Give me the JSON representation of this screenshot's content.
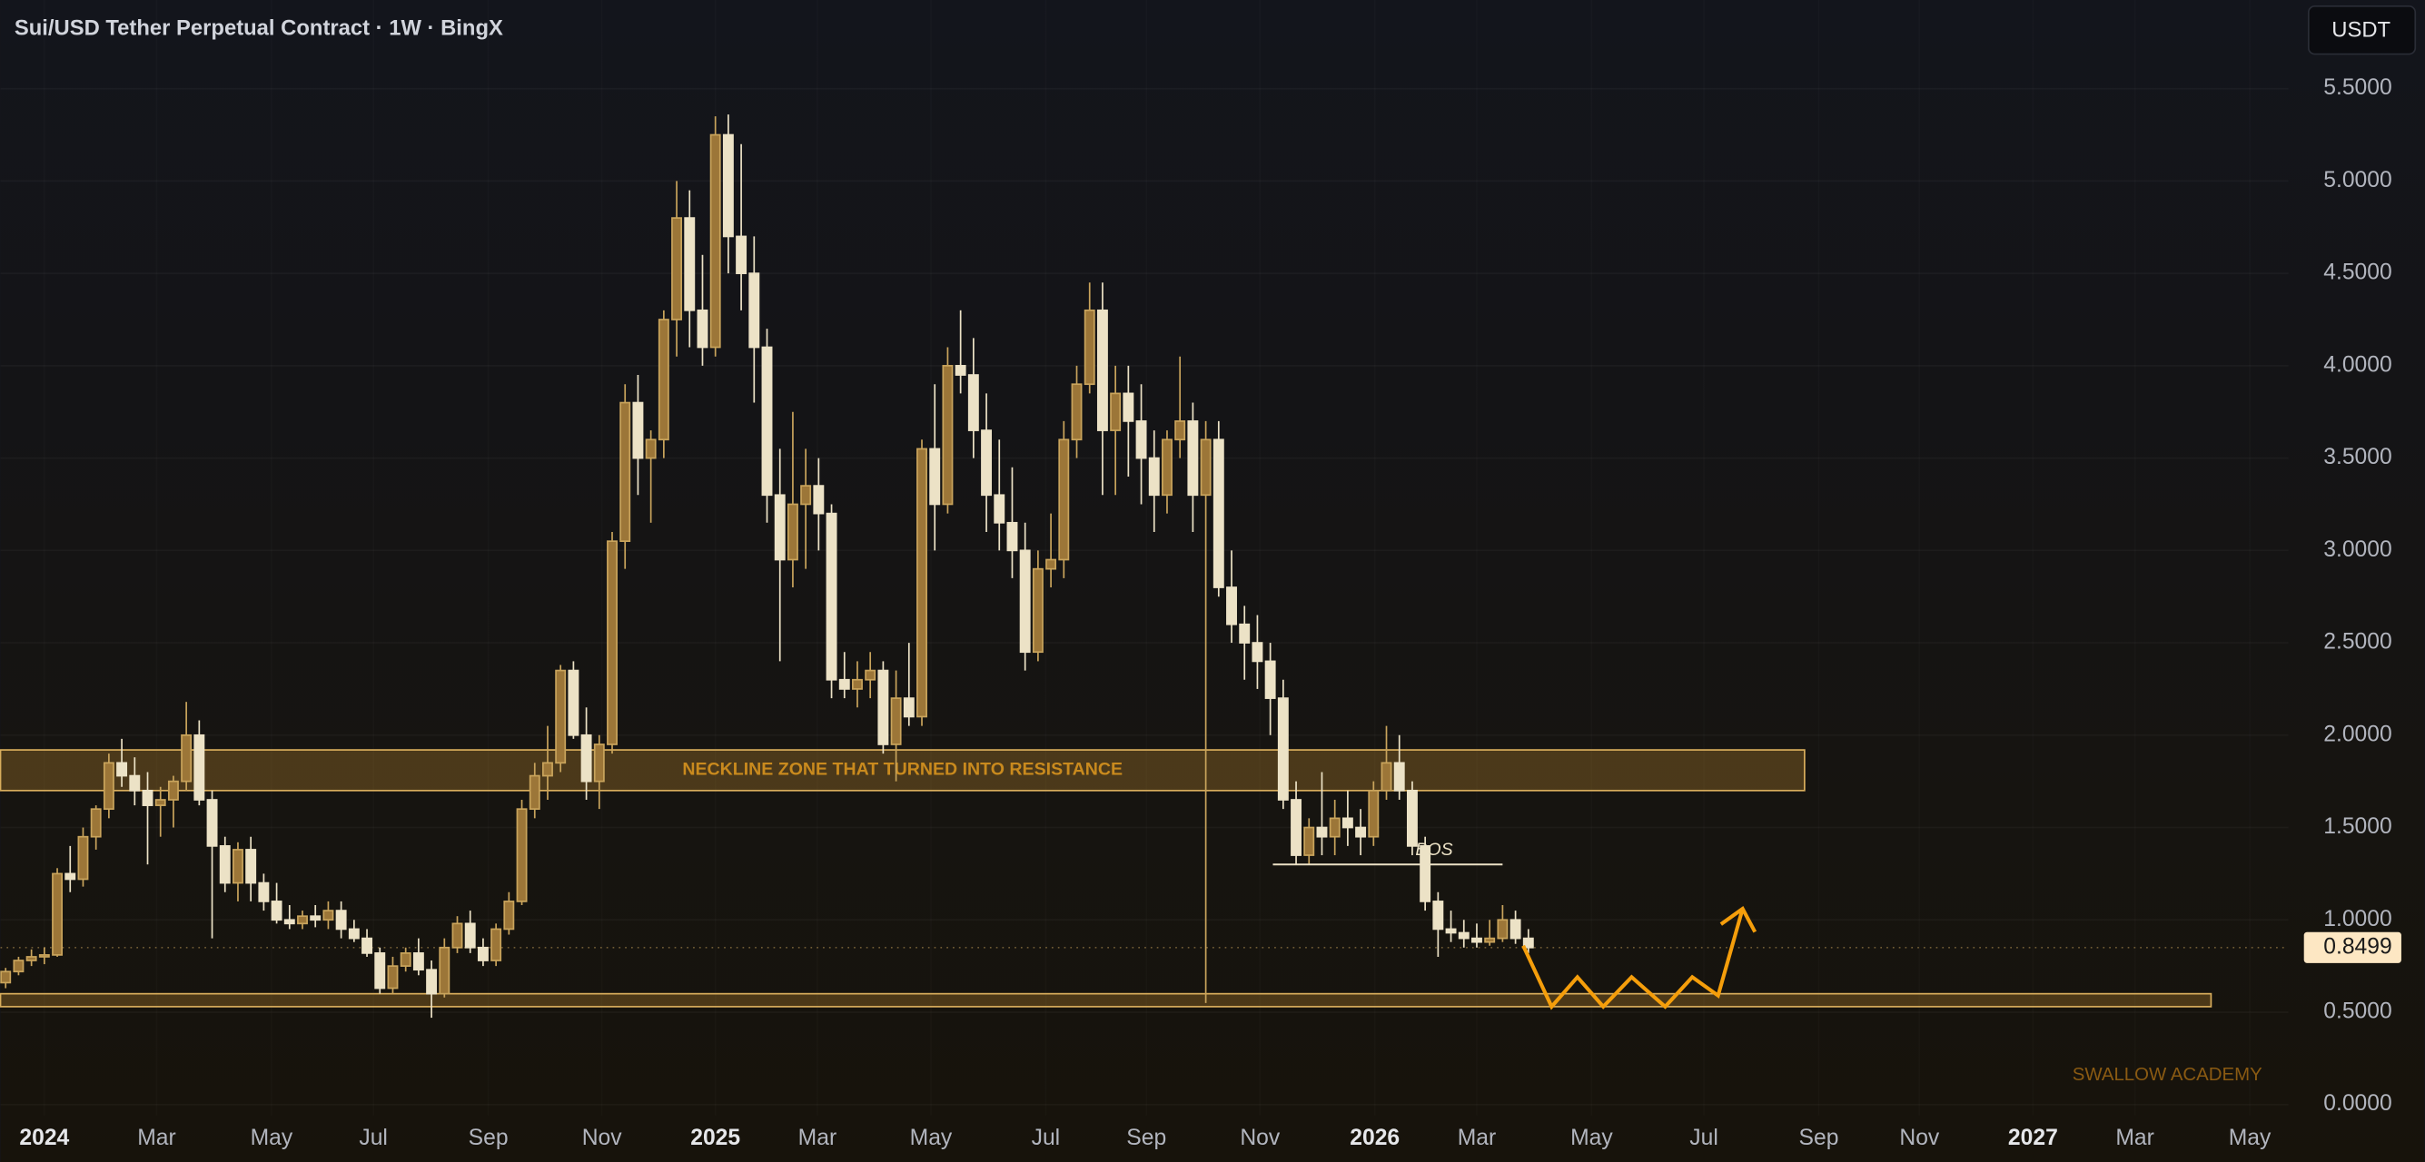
{
  "chart_data": {
    "type": "candlestick",
    "title": "Sui/USD Tether Perpetual Contract · 1W · BingX",
    "currency_button": "USDT",
    "watermark": "SWALLOW ACADEMY",
    "up_color": "#c9a45c",
    "down_color": "#ece2c6",
    "open": [
      0.66,
      0.72,
      0.78,
      0.8,
      0.81,
      1.25,
      1.22,
      1.45,
      1.6,
      1.85,
      1.78,
      1.7,
      1.62,
      1.65,
      1.75,
      2.0,
      1.65,
      1.4,
      1.2,
      1.38,
      1.2,
      1.1,
      1.0,
      0.98,
      1.02,
      1.0,
      1.05,
      0.95,
      0.9,
      0.82,
      0.63,
      0.75,
      0.82,
      0.73,
      0.6,
      0.85,
      0.98,
      0.85,
      0.78,
      0.95,
      1.1,
      1.6,
      1.78,
      1.85,
      2.35,
      2.0,
      1.75,
      1.95,
      3.05,
      3.8,
      3.5,
      3.6,
      4.25,
      4.8,
      4.3,
      4.1,
      5.25,
      4.7,
      4.5,
      4.1,
      3.3,
      2.95,
      3.25,
      3.35,
      3.2,
      2.3,
      2.25,
      2.3,
      2.35,
      1.95,
      2.2,
      2.1,
      3.55,
      3.25,
      4.0,
      3.95,
      3.65,
      3.3,
      3.15,
      3.0,
      2.45,
      2.9,
      2.95,
      3.6,
      3.9,
      4.3,
      3.65,
      3.85,
      3.7,
      3.5,
      3.3,
      3.6,
      3.7,
      3.3,
      3.6,
      2.8,
      2.6,
      2.5,
      2.4,
      2.2,
      1.65,
      1.35,
      1.5,
      1.45,
      1.55,
      1.5,
      1.45,
      1.7,
      1.85,
      1.7,
      1.4,
      1.1,
      0.95,
      0.93,
      0.9,
      0.88,
      0.9,
      1.0,
      0.9
    ],
    "high": [
      0.74,
      0.8,
      0.84,
      0.85,
      1.28,
      1.4,
      1.5,
      1.62,
      1.9,
      1.98,
      1.88,
      1.8,
      1.72,
      1.78,
      2.18,
      2.08,
      1.7,
      1.45,
      1.42,
      1.45,
      1.25,
      1.2,
      1.08,
      1.05,
      1.08,
      1.1,
      1.1,
      1.0,
      0.95,
      0.85,
      0.8,
      0.85,
      0.9,
      0.78,
      0.9,
      1.02,
      1.05,
      0.9,
      0.98,
      1.15,
      1.65,
      1.85,
      2.05,
      2.38,
      2.4,
      2.15,
      2.0,
      3.1,
      3.9,
      3.95,
      3.65,
      4.3,
      5.0,
      4.95,
      4.6,
      5.35,
      5.36,
      5.2,
      4.7,
      4.2,
      3.55,
      3.75,
      3.55,
      3.5,
      3.25,
      2.45,
      2.4,
      2.45,
      2.4,
      2.35,
      2.5,
      3.6,
      3.9,
      4.1,
      4.3,
      4.15,
      3.85,
      3.6,
      3.45,
      3.15,
      3.0,
      3.2,
      3.7,
      4.0,
      4.45,
      4.45,
      4.0,
      4.0,
      3.9,
      3.65,
      3.65,
      4.05,
      3.8,
      3.7,
      3.7,
      3.0,
      2.7,
      2.65,
      2.5,
      2.3,
      1.75,
      1.55,
      1.8,
      1.65,
      1.7,
      1.6,
      1.75,
      2.05,
      2.0,
      1.75,
      1.45,
      1.15,
      1.05,
      1.0,
      0.98,
      1.0,
      1.08,
      1.05,
      0.95
    ],
    "low": [
      0.63,
      0.7,
      0.75,
      0.76,
      0.8,
      1.15,
      1.18,
      1.38,
      1.55,
      1.72,
      1.62,
      1.3,
      1.45,
      1.5,
      1.7,
      1.62,
      0.9,
      1.15,
      1.1,
      1.1,
      1.05,
      0.98,
      0.95,
      0.95,
      0.96,
      0.95,
      0.9,
      0.88,
      0.8,
      0.6,
      0.6,
      0.72,
      0.7,
      0.47,
      0.58,
      0.82,
      0.82,
      0.75,
      0.75,
      0.92,
      1.08,
      1.55,
      1.65,
      1.8,
      1.98,
      1.65,
      1.6,
      1.9,
      2.9,
      3.3,
      3.15,
      3.5,
      4.05,
      4.1,
      4.0,
      4.05,
      4.5,
      4.3,
      3.8,
      3.15,
      2.4,
      2.8,
      2.9,
      3.0,
      2.2,
      2.2,
      2.15,
      2.2,
      1.9,
      1.75,
      2.05,
      2.05,
      3.0,
      3.2,
      3.85,
      3.5,
      3.1,
      3.0,
      2.85,
      2.35,
      2.4,
      2.8,
      2.85,
      3.5,
      3.85,
      3.3,
      3.3,
      3.4,
      3.25,
      3.1,
      3.2,
      3.5,
      3.1,
      0.55,
      2.75,
      2.5,
      2.3,
      2.25,
      2.0,
      1.6,
      1.3,
      1.3,
      1.35,
      1.35,
      1.4,
      1.35,
      1.4,
      1.65,
      1.65,
      1.35,
      1.05,
      0.8,
      0.88,
      0.85,
      0.85,
      0.86,
      0.88,
      0.87,
      0.82
    ],
    "close": [
      0.72,
      0.78,
      0.8,
      0.81,
      1.25,
      1.22,
      1.45,
      1.6,
      1.85,
      1.78,
      1.7,
      1.62,
      1.65,
      1.75,
      2.0,
      1.65,
      1.4,
      1.2,
      1.38,
      1.2,
      1.1,
      1.0,
      0.98,
      1.02,
      1.0,
      1.05,
      0.95,
      0.9,
      0.82,
      0.63,
      0.75,
      0.82,
      0.73,
      0.6,
      0.85,
      0.98,
      0.85,
      0.78,
      0.95,
      1.1,
      1.6,
      1.78,
      1.85,
      2.35,
      2.0,
      1.75,
      1.95,
      3.05,
      3.8,
      3.5,
      3.6,
      4.25,
      4.8,
      4.3,
      4.1,
      5.25,
      4.7,
      4.5,
      4.1,
      3.3,
      2.95,
      3.25,
      3.35,
      3.2,
      2.3,
      2.25,
      2.3,
      2.35,
      1.95,
      2.2,
      2.1,
      3.55,
      3.25,
      4.0,
      3.95,
      3.65,
      3.3,
      3.15,
      3.0,
      2.45,
      2.9,
      2.95,
      3.6,
      3.9,
      4.3,
      3.65,
      3.85,
      3.7,
      3.5,
      3.3,
      3.6,
      3.7,
      3.3,
      3.6,
      2.8,
      2.6,
      2.5,
      2.4,
      2.2,
      1.65,
      1.35,
      1.5,
      1.45,
      1.55,
      1.5,
      1.45,
      1.7,
      1.85,
      1.7,
      1.4,
      1.1,
      0.95,
      0.93,
      0.9,
      0.88,
      0.9,
      1.0,
      0.9,
      0.85
    ],
    "xlim": [
      -0.4,
      176.9
    ],
    "xticks": [
      {
        "value": 3.0,
        "label": "2024"
      },
      {
        "value": 11.7,
        "label": "Mar"
      },
      {
        "value": 20.6,
        "label": "May"
      },
      {
        "value": 28.5,
        "label": "Jul"
      },
      {
        "value": 37.4,
        "label": "Sep"
      },
      {
        "value": 46.2,
        "label": "Nov"
      },
      {
        "value": 55.0,
        "label": "2025"
      },
      {
        "value": 62.9,
        "label": "Mar"
      },
      {
        "value": 71.7,
        "label": "May"
      },
      {
        "value": 80.6,
        "label": "Jul"
      },
      {
        "value": 88.4,
        "label": "Sep"
      },
      {
        "value": 97.2,
        "label": "Nov"
      },
      {
        "value": 106.1,
        "label": "2026"
      },
      {
        "value": 114.0,
        "label": "Mar"
      },
      {
        "value": 122.9,
        "label": "May"
      },
      {
        "value": 131.6,
        "label": "Jul"
      },
      {
        "value": 140.5,
        "label": "Sep"
      },
      {
        "value": 148.3,
        "label": "Nov"
      },
      {
        "value": 157.1,
        "label": "2027"
      },
      {
        "value": 165.0,
        "label": "Mar"
      },
      {
        "value": 173.9,
        "label": "May"
      }
    ],
    "ylim": [
      -0.06,
      5.98
    ],
    "yticks": [
      {
        "value": 0,
        "label": "0.0000"
      },
      {
        "value": 0.5,
        "label": "0.5000"
      },
      {
        "value": 1,
        "label": "1.0000"
      },
      {
        "value": 1.5,
        "label": "1.5000"
      },
      {
        "value": 2,
        "label": "2.0000"
      },
      {
        "value": 2.5,
        "label": "2.5000"
      },
      {
        "value": 3,
        "label": "3.0000"
      },
      {
        "value": 3.5,
        "label": "3.5000"
      },
      {
        "value": 4,
        "label": "4.0000"
      },
      {
        "value": 4.5,
        "label": "4.5000"
      },
      {
        "value": 5,
        "label": "5.0000"
      },
      {
        "value": 5.5,
        "label": "5.5000"
      }
    ],
    "grid": true,
    "last_price": 0.8499,
    "zones": [
      {
        "label": "NECKLINE ZONE THAT TURNED INTO RESISTANCE",
        "x": [
          -0.4,
          139.4
        ],
        "y": [
          1.7,
          1.92
        ]
      },
      {
        "x": [
          -0.4,
          170.9
        ],
        "y": [
          0.53,
          0.6
        ]
      }
    ],
    "bos": {
      "label": "BOS",
      "x": [
        98.2,
        116.0
      ],
      "y": 1.3
    },
    "projection": {
      "color": "#f59e0b",
      "x": [
        117.6,
        119.8,
        121.8,
        123.8,
        126.0,
        128.6,
        130.7,
        132.7,
        134.6
      ],
      "y": [
        0.86,
        0.53,
        0.69,
        0.53,
        0.69,
        0.53,
        0.69,
        0.59,
        1.06
      ]
    }
  }
}
